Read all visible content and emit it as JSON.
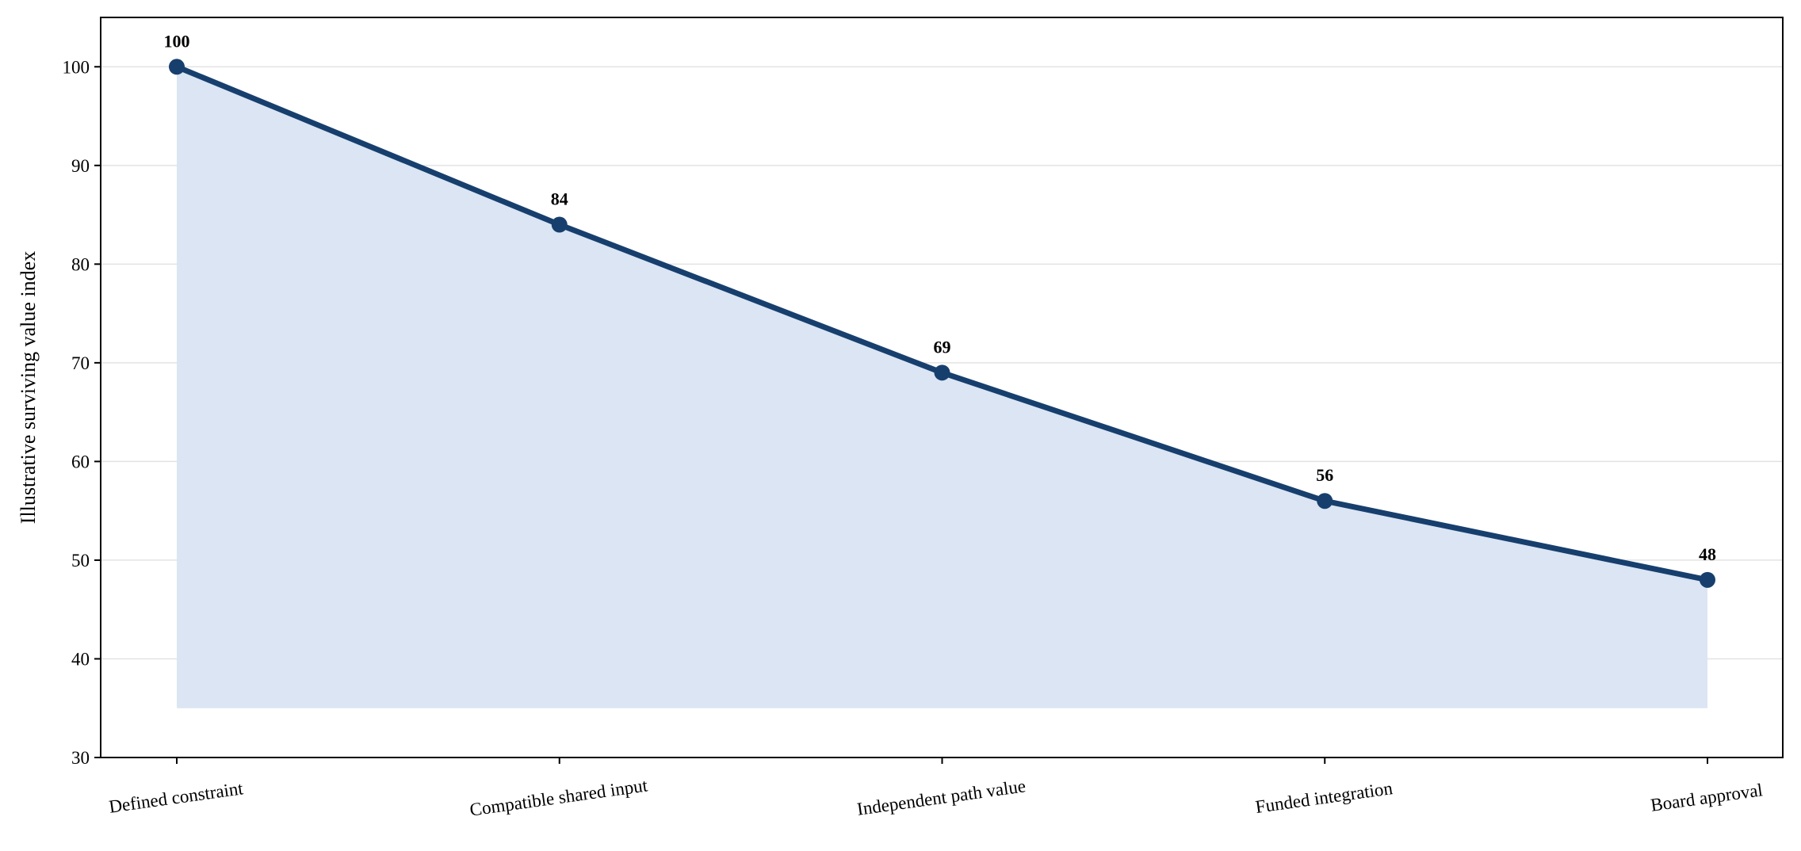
{
  "chart_data": {
    "type": "line",
    "title": "",
    "xlabel": "",
    "ylabel": "Illustrative surviving value index",
    "categories": [
      "Defined constraint",
      "Compatible shared input",
      "Independent path value",
      "Funded integration",
      "Board approval"
    ],
    "series": [
      {
        "values": [
          100,
          84,
          69,
          56,
          48
        ],
        "color": "#173f6e",
        "fill_color": "#dbe5f3",
        "fill_baseline": 35
      }
    ],
    "data_labels": [
      "100",
      "84",
      "69",
      "56",
      "48"
    ],
    "ylim": [
      30,
      105
    ],
    "yticks": [
      30,
      40,
      50,
      60,
      70,
      80,
      90,
      100
    ],
    "ytick_labels": [
      "30",
      "40",
      "50",
      "60",
      "70",
      "80",
      "90",
      "100"
    ],
    "grid": "horizontal",
    "legend": "none"
  }
}
